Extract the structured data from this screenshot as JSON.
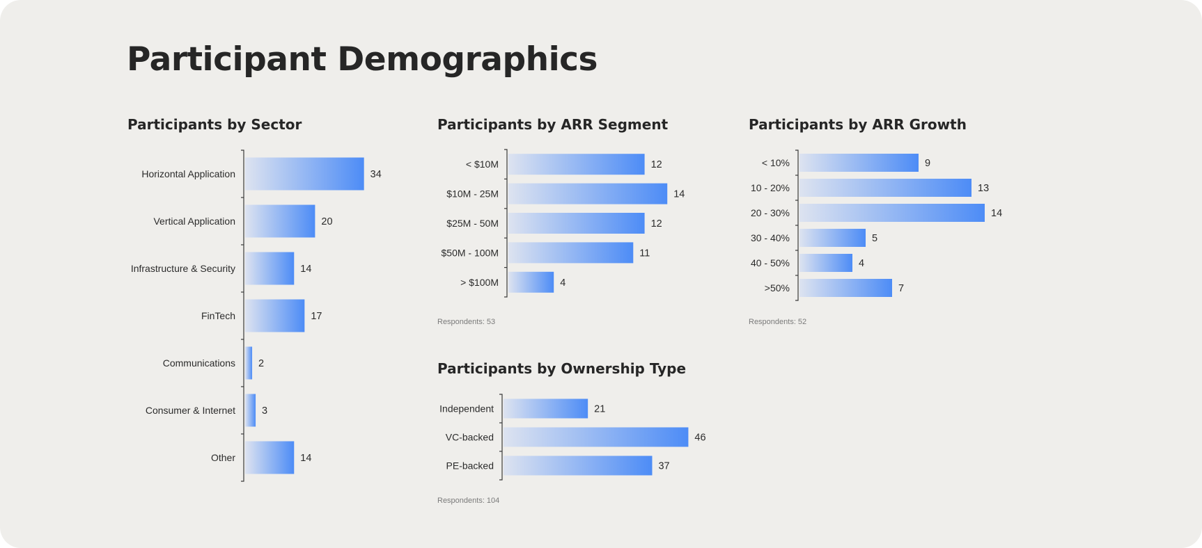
{
  "page": {
    "title": "Participant Demographics"
  },
  "colors": {
    "bar_start": "#dde3f0",
    "bar_end": "#4d8cf6",
    "text": "#262626",
    "axis": "#3a3a3a",
    "card": "#efeeeb"
  },
  "chart_data": [
    {
      "id": "sector",
      "type": "bar",
      "orientation": "horizontal",
      "title": "Participants by Sector",
      "categories": [
        "Horizontal Application",
        "Vertical Application",
        "Infrastructure & Security",
        "FinTech",
        "Communications",
        "Consumer & Internet",
        "Other"
      ],
      "values": [
        34,
        20,
        14,
        17,
        2,
        3,
        14
      ],
      "respondents": ""
    },
    {
      "id": "arr_segment",
      "type": "bar",
      "orientation": "horizontal",
      "title": "Participants by ARR Segment",
      "categories": [
        "< $10M",
        "$10M - 25M",
        "$25M - 50M",
        "$50M - 100M",
        "> $100M"
      ],
      "values": [
        12,
        14,
        12,
        11,
        4
      ],
      "respondents": "Respondents: 53"
    },
    {
      "id": "arr_growth",
      "type": "bar",
      "orientation": "horizontal",
      "title": "Participants by ARR Growth",
      "categories": [
        "< 10%",
        "10 - 20%",
        "20 - 30%",
        "30 - 40%",
        "40 - 50%",
        ">50%"
      ],
      "values": [
        9,
        13,
        14,
        5,
        4,
        7
      ],
      "respondents": "Respondents: 52"
    },
    {
      "id": "ownership",
      "type": "bar",
      "orientation": "horizontal",
      "title": "Participants by Ownership Type",
      "categories": [
        "Independent",
        "VC-backed",
        "PE-backed"
      ],
      "values": [
        21,
        46,
        37
      ],
      "respondents": "Respondents: 104"
    }
  ]
}
